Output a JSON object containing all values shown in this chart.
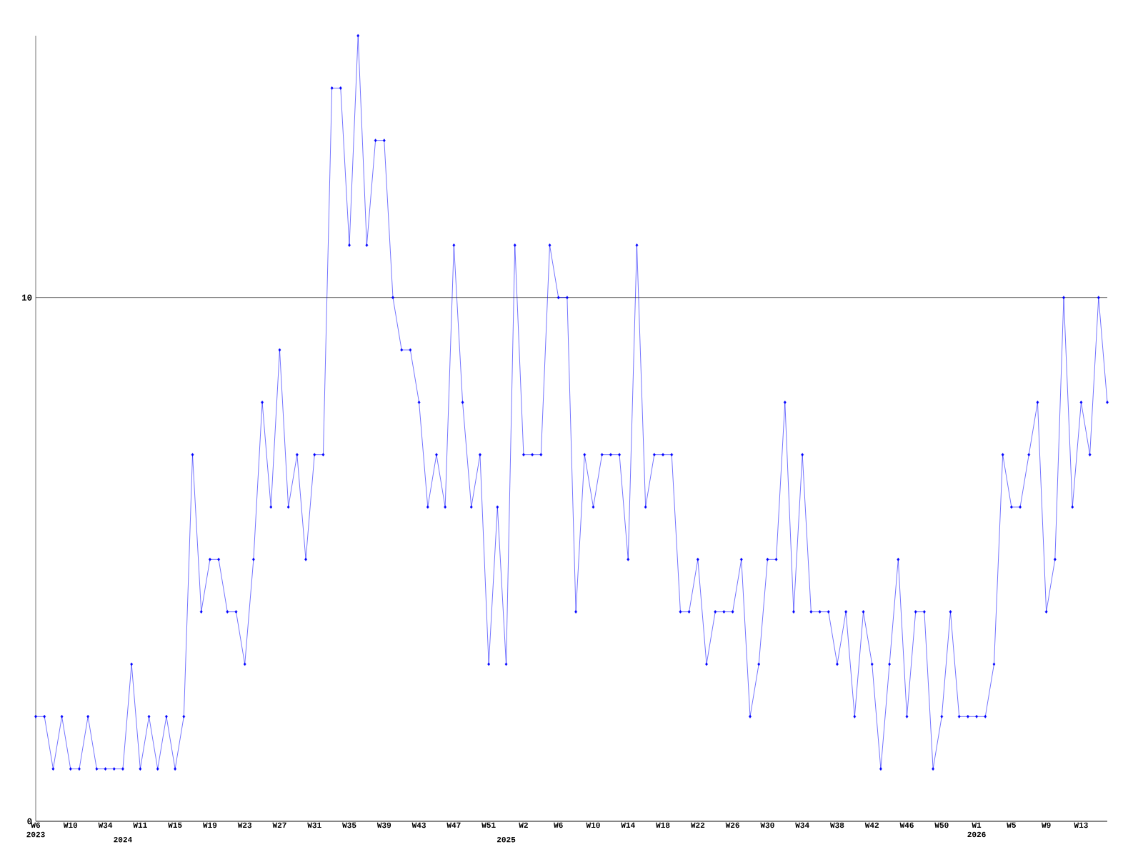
{
  "chart_data": {
    "type": "line",
    "categories": [
      "W6\n2023",
      null,
      null,
      null,
      "W10",
      null,
      null,
      null,
      "W34",
      null,
      "\n2024",
      null,
      "W11",
      null,
      null,
      null,
      "W15",
      null,
      null,
      null,
      "W19",
      null,
      null,
      null,
      "W23",
      null,
      null,
      null,
      "W27",
      null,
      null,
      null,
      "W31",
      null,
      null,
      null,
      "W35",
      null,
      null,
      null,
      "W39",
      null,
      null,
      null,
      "W43",
      null,
      null,
      null,
      "W47",
      null,
      null,
      null,
      "W51",
      null,
      "\n2025",
      null,
      "W2",
      null,
      null,
      null,
      "W6",
      null,
      null,
      null,
      "W10",
      null,
      null,
      null,
      "W14",
      null,
      null,
      null,
      "W18",
      null,
      null,
      null,
      "W22",
      null,
      null,
      null,
      "W26",
      null,
      null,
      null,
      "W30",
      null,
      null,
      null,
      "W34",
      null,
      null,
      null,
      "W38",
      null,
      null,
      null,
      "W42",
      null,
      null,
      null,
      "W46",
      null,
      null,
      null,
      "W50",
      null,
      null,
      null,
      "W1\n2026",
      null,
      null,
      null,
      "W5",
      null,
      null,
      null,
      "W9",
      null,
      null,
      null,
      "W13",
      null,
      null,
      null
    ],
    "series": [
      {
        "color": "#0000ff",
        "values": [
          2,
          2,
          1,
          2,
          1,
          1,
          2,
          1,
          1,
          1,
          1,
          3,
          1,
          2,
          1,
          2,
          1,
          2,
          7,
          4,
          5,
          5,
          4,
          4,
          3,
          5,
          8,
          6,
          9,
          6,
          7,
          5,
          7,
          7,
          14,
          14,
          11,
          15,
          11,
          13,
          13,
          10,
          9,
          9,
          8,
          6,
          7,
          6,
          11,
          8,
          6,
          7,
          3,
          6,
          3,
          11,
          7,
          7,
          7,
          11,
          10,
          10,
          4,
          7,
          6,
          7,
          7,
          7,
          5,
          11,
          6,
          7,
          7,
          7,
          4,
          4,
          5,
          3,
          4,
          4,
          4,
          5,
          2,
          3,
          5,
          5,
          8,
          4,
          7,
          4,
          4,
          4,
          3,
          4,
          2,
          4,
          3,
          1,
          3,
          5,
          2,
          4,
          4,
          1,
          2,
          4,
          2,
          2,
          2,
          2,
          3,
          7,
          6,
          6,
          7,
          8,
          4,
          5,
          10,
          6,
          8,
          7,
          10,
          8
        ]
      }
    ],
    "ylim": [
      0,
      15
    ],
    "yticks": [
      0,
      10
    ],
    "grid": "y",
    "marker": "diamond",
    "line_style": "solid"
  }
}
